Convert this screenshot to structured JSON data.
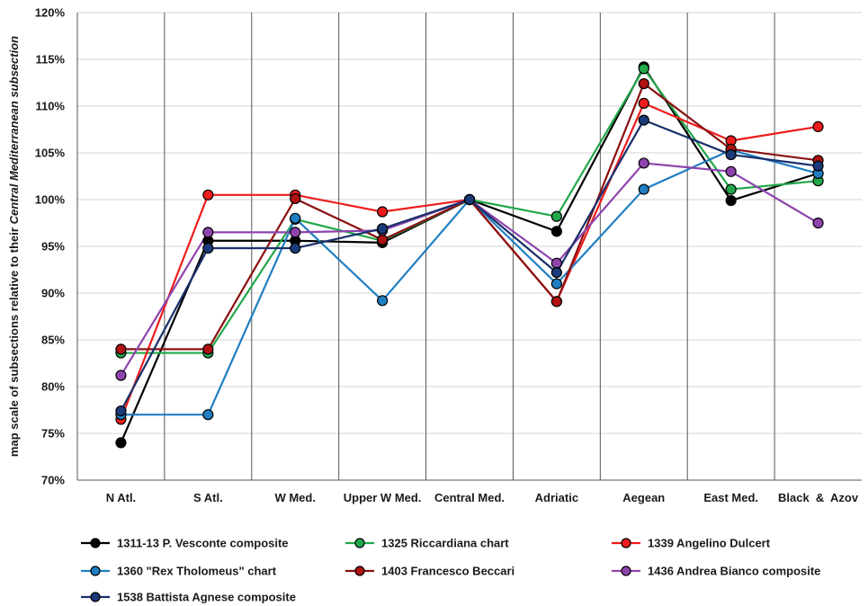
{
  "chart_data": {
    "type": "line",
    "title": "",
    "xlabel": "",
    "ylabel_parts": [
      {
        "text": "map scale of subsections relative to their ",
        "italic": false
      },
      {
        "text": "Central Mediterranean subsection",
        "italic": true
      }
    ],
    "categories": [
      "N Atl.",
      "S Atl.",
      "W Med.",
      "Upper W Med.",
      "Central Med.",
      "Adriatic",
      "Aegean",
      "East Med.",
      "Black  &  Azov"
    ],
    "ylim": [
      70,
      120
    ],
    "ytick_step": 5,
    "ytick_suffix": "%",
    "grid": {
      "horizontal": true,
      "vertical": true
    },
    "legend": {
      "position": "bottom",
      "columns": 3
    },
    "series": [
      {
        "name": "1311-13 P. Vesconte composite",
        "color": "#000000",
        "marker_fill": "#000000",
        "values": [
          74.0,
          95.6,
          95.6,
          95.4,
          100.0,
          96.6,
          114.2,
          99.9,
          102.8
        ]
      },
      {
        "name": "1325 Riccardiana chart",
        "color": "#22a84a",
        "marker_fill": "#22a84a",
        "values": [
          83.6,
          83.6,
          97.9,
          95.6,
          100.0,
          98.2,
          114.0,
          101.1,
          102.0
        ]
      },
      {
        "name": "1339 Angelino Dulcert",
        "color": "#ee1c1c",
        "marker_fill": "#ee1c1c",
        "values": [
          76.5,
          100.5,
          100.5,
          98.7,
          100.0,
          89.1,
          110.3,
          106.3,
          107.8
        ]
      },
      {
        "name": "1360 \"Rex Tholomeus\" chart",
        "color": "#1f7fc2",
        "marker_fill": "#1f7fc2",
        "values": [
          77.0,
          77.0,
          98.0,
          89.2,
          100.0,
          91.0,
          101.1,
          105.3,
          102.8
        ]
      },
      {
        "name": "1403 Francesco Beccari",
        "color": "#8b1010",
        "marker_fill": "#b01212",
        "values": [
          84.0,
          84.0,
          100.1,
          95.7,
          100.0,
          89.1,
          112.4,
          105.4,
          104.2
        ]
      },
      {
        "name": "1436 Andrea Bianco composite",
        "color": "#8e44ad",
        "marker_fill": "#8e44ad",
        "values": [
          81.2,
          96.5,
          96.5,
          96.7,
          100.0,
          93.2,
          103.9,
          103.0,
          97.5
        ]
      },
      {
        "name": "1538 Battista Agnese composite",
        "color": "#1a2f6b",
        "marker_fill": "#1a3a7a",
        "values": [
          77.4,
          94.8,
          94.8,
          96.9,
          100.0,
          92.2,
          108.5,
          104.8,
          103.6
        ]
      }
    ]
  }
}
